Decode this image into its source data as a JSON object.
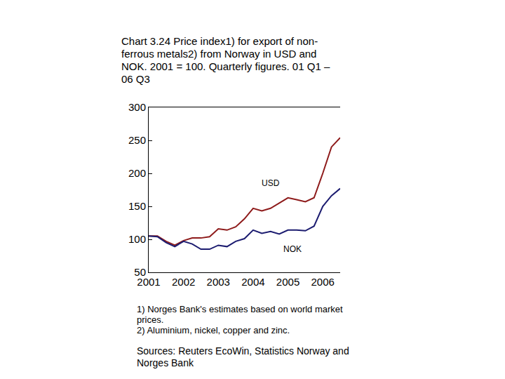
{
  "chart_data": {
    "type": "line",
    "title": "Chart 3.24 Price index1) for export of non-ferrous metals2) from Norway in USD and NOK. 2001 = 100. Quarterly figures. 01 Q1 – 06 Q3",
    "notes": [
      "1) Norges Bank's estimates based on world market prices.",
      "2) Aluminium, nickel, copper and zinc."
    ],
    "source": "Sources: Reuters EcoWin, Statistics Norway and Norges Bank",
    "categories": [
      "2001",
      null,
      null,
      null,
      "2002",
      null,
      null,
      null,
      "2003",
      null,
      null,
      null,
      "2004",
      null,
      null,
      null,
      "2005",
      null,
      null,
      null,
      "2006",
      null,
      null
    ],
    "series": [
      {
        "name": "USD",
        "color": "#8e1b1b",
        "values": [
          105,
          105,
          97,
          91,
          98,
          102,
          102,
          104,
          116,
          114,
          119,
          131,
          147,
          143,
          147,
          155,
          163,
          160,
          157,
          163,
          200,
          240,
          254
        ]
      },
      {
        "name": "NOK",
        "color": "#1c1c70",
        "values": [
          105,
          104,
          95,
          89,
          97,
          93,
          85,
          85,
          91,
          89,
          97,
          101,
          114,
          109,
          112,
          108,
          114,
          114,
          113,
          120,
          150,
          166,
          177
        ]
      }
    ],
    "annotations": [
      {
        "text": "USD",
        "x": 14,
        "y": 185
      },
      {
        "text": "NOK",
        "x": 16.5,
        "y": 85
      }
    ],
    "ylim": [
      50,
      300
    ],
    "yticks": [
      50,
      100,
      150,
      200,
      250,
      300
    ],
    "y2lim": [
      50,
      300
    ],
    "y2ticks": [
      50,
      100,
      150,
      200,
      250,
      300
    ],
    "grid": false
  }
}
